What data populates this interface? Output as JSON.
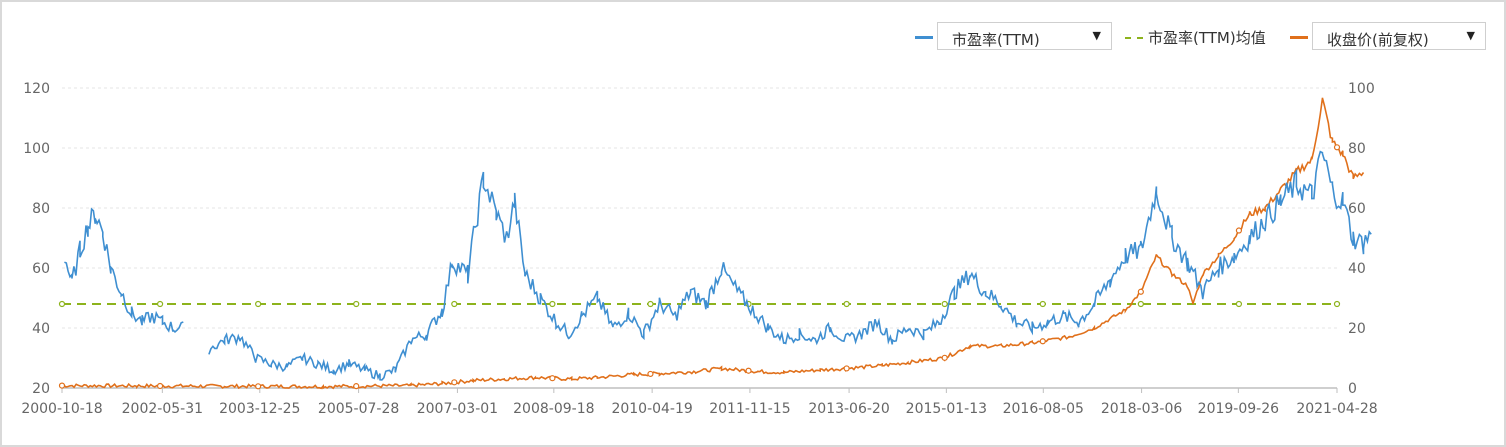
{
  "legend": {
    "pe_label": "市盈率(TTM)",
    "mean_label": "市盈率(TTM)均值",
    "price_label": "收盘价(前复权)",
    "dropdown_icon": "caret-down-icon"
  },
  "colors": {
    "pe": "#3f8fd1",
    "mean": "#8db31c",
    "price": "#e0701b",
    "grid": "#e6e6e6",
    "axis": "#bfbfbf"
  },
  "chart_data": {
    "type": "line",
    "x_tick_labels": [
      "2000-10-18",
      "2002-05-31",
      "2003-12-25",
      "2005-07-28",
      "2007-03-01",
      "2008-09-18",
      "2010-04-19",
      "2011-11-15",
      "2013-06-20",
      "2015-01-13",
      "2016-08-05",
      "2018-03-06",
      "2019-09-26",
      "2021-04-28"
    ],
    "y_left": {
      "range": [
        20,
        120
      ],
      "ticks": [
        "20",
        "40",
        "60",
        "80",
        "100",
        "120"
      ]
    },
    "y_right": {
      "range": [
        0,
        100
      ],
      "ticks": [
        "0",
        "20",
        "40",
        "60",
        "80",
        "100"
      ]
    },
    "grid": true,
    "legend_position": "top-right",
    "series": [
      {
        "name": "市盈率(TTM)",
        "axis": "left",
        "points": [
          [
            "2000-11-01",
            64
          ],
          [
            "2000-12-15",
            55
          ],
          [
            "2001-02-01",
            66
          ],
          [
            "2001-03-20",
            74
          ],
          [
            "2001-05-01",
            78
          ],
          [
            "2001-06-15",
            72
          ],
          [
            "2001-08-01",
            60
          ],
          [
            "2001-10-01",
            52
          ],
          [
            "2001-12-01",
            45
          ],
          [
            "2002-02-01",
            42
          ],
          [
            "2002-04-01",
            44
          ],
          [
            "2002-06-01",
            42
          ],
          [
            "2002-08-01",
            40
          ],
          [
            "2002-10-01",
            40
          ],
          [
            "2003-01-01",
            null
          ],
          [
            "2003-03-01",
            33
          ],
          [
            "2003-06-01",
            36
          ],
          [
            "2003-09-01",
            37
          ],
          [
            "2003-12-01",
            30
          ],
          [
            "2004-03-01",
            28
          ],
          [
            "2004-06-01",
            27
          ],
          [
            "2004-09-01",
            30
          ],
          [
            "2004-12-01",
            28
          ],
          [
            "2005-03-01",
            26
          ],
          [
            "2005-06-01",
            28
          ],
          [
            "2005-09-01",
            26
          ],
          [
            "2005-12-01",
            24
          ],
          [
            "2006-03-01",
            26
          ],
          [
            "2006-06-01",
            36
          ],
          [
            "2006-09-01",
            38
          ],
          [
            "2006-12-01",
            46
          ],
          [
            "2007-02-01",
            62
          ],
          [
            "2007-05-01",
            58
          ],
          [
            "2007-08-01",
            90
          ],
          [
            "2007-10-15",
            78
          ],
          [
            "2007-12-15",
            70
          ],
          [
            "2008-02-01",
            82
          ],
          [
            "2008-04-01",
            58
          ],
          [
            "2008-07-01",
            50
          ],
          [
            "2008-10-01",
            42
          ],
          [
            "2008-12-15",
            38
          ],
          [
            "2009-03-01",
            44
          ],
          [
            "2009-06-01",
            50
          ],
          [
            "2009-09-01",
            40
          ],
          [
            "2009-12-01",
            45
          ],
          [
            "2010-03-01",
            38
          ],
          [
            "2010-06-01",
            48
          ],
          [
            "2010-09-01",
            44
          ],
          [
            "2010-12-01",
            52
          ],
          [
            "2011-03-01",
            48
          ],
          [
            "2011-06-01",
            60
          ],
          [
            "2011-09-01",
            52
          ],
          [
            "2011-12-01",
            46
          ],
          [
            "2012-03-01",
            40
          ],
          [
            "2012-06-01",
            36
          ],
          [
            "2012-09-01",
            38
          ],
          [
            "2012-12-01",
            36
          ],
          [
            "2013-03-01",
            40
          ],
          [
            "2013-06-01",
            36
          ],
          [
            "2013-09-01",
            38
          ],
          [
            "2013-12-01",
            42
          ],
          [
            "2014-03-01",
            36
          ],
          [
            "2014-06-01",
            40
          ],
          [
            "2014-09-01",
            38
          ],
          [
            "2014-12-01",
            42
          ],
          [
            "2015-03-01",
            52
          ],
          [
            "2015-06-01",
            58
          ],
          [
            "2015-09-01",
            52
          ],
          [
            "2015-12-01",
            48
          ],
          [
            "2016-03-01",
            42
          ],
          [
            "2016-06-01",
            40
          ],
          [
            "2016-09-01",
            42
          ],
          [
            "2016-12-01",
            44
          ],
          [
            "2017-03-01",
            42
          ],
          [
            "2017-06-01",
            48
          ],
          [
            "2017-09-01",
            56
          ],
          [
            "2017-12-01",
            64
          ],
          [
            "2018-03-01",
            66
          ],
          [
            "2018-06-01",
            86
          ],
          [
            "2018-09-01",
            70
          ],
          [
            "2018-12-01",
            62
          ],
          [
            "2019-03-01",
            52
          ],
          [
            "2019-06-01",
            60
          ],
          [
            "2019-09-01",
            64
          ],
          [
            "2019-12-01",
            70
          ],
          [
            "2020-03-01",
            76
          ],
          [
            "2020-06-01",
            82
          ],
          [
            "2020-09-01",
            88
          ],
          [
            "2020-12-01",
            84
          ],
          [
            "2021-02-01",
            98
          ],
          [
            "2021-04-01",
            86
          ],
          [
            "2021-06-01",
            82
          ],
          [
            "2021-08-01",
            70
          ],
          [
            "2021-10-01",
            68
          ],
          [
            "2021-11-15",
            72
          ]
        ]
      },
      {
        "name": "市盈率(TTM)均值",
        "axis": "left",
        "value": 48
      },
      {
        "name": "收盘价(前复权)",
        "axis": "right",
        "points": [
          [
            "2000-10-18",
            0.8
          ],
          [
            "2002-01-01",
            0.7
          ],
          [
            "2003-06-01",
            0.6
          ],
          [
            "2005-01-01",
            0.5
          ],
          [
            "2006-06-01",
            0.8
          ],
          [
            "2006-12-01",
            1.5
          ],
          [
            "2007-06-01",
            2.5
          ],
          [
            "2007-12-01",
            3.0
          ],
          [
            "2008-06-01",
            3.5
          ],
          [
            "2009-01-01",
            3.0
          ],
          [
            "2009-06-01",
            3.5
          ],
          [
            "2010-01-01",
            4.5
          ],
          [
            "2010-06-01",
            4.8
          ],
          [
            "2011-01-01",
            5.5
          ],
          [
            "2011-06-01",
            6.5
          ],
          [
            "2012-01-01",
            5.5
          ],
          [
            "2012-06-01",
            5.2
          ],
          [
            "2013-01-01",
            6.0
          ],
          [
            "2013-06-01",
            6.5
          ],
          [
            "2014-01-01",
            7.5
          ],
          [
            "2014-06-01",
            8.5
          ],
          [
            "2015-01-01",
            10
          ],
          [
            "2015-06-01",
            14
          ],
          [
            "2015-12-01",
            14
          ],
          [
            "2016-06-01",
            15
          ],
          [
            "2017-01-01",
            17
          ],
          [
            "2017-06-01",
            20
          ],
          [
            "2017-12-01",
            26
          ],
          [
            "2018-03-01",
            32
          ],
          [
            "2018-06-01",
            44
          ],
          [
            "2018-09-01",
            38
          ],
          [
            "2018-12-01",
            34
          ],
          [
            "2019-01-01",
            28
          ],
          [
            "2019-03-01",
            38
          ],
          [
            "2019-06-01",
            44
          ],
          [
            "2019-09-01",
            50
          ],
          [
            "2019-12-01",
            58
          ],
          [
            "2020-03-01",
            60
          ],
          [
            "2020-06-01",
            66
          ],
          [
            "2020-09-01",
            72
          ],
          [
            "2020-12-01",
            76
          ],
          [
            "2021-02-01",
            96
          ],
          [
            "2021-04-01",
            82
          ],
          [
            "2021-06-01",
            78
          ],
          [
            "2021-08-01",
            70
          ],
          [
            "2021-10-01",
            72
          ]
        ]
      }
    ]
  }
}
